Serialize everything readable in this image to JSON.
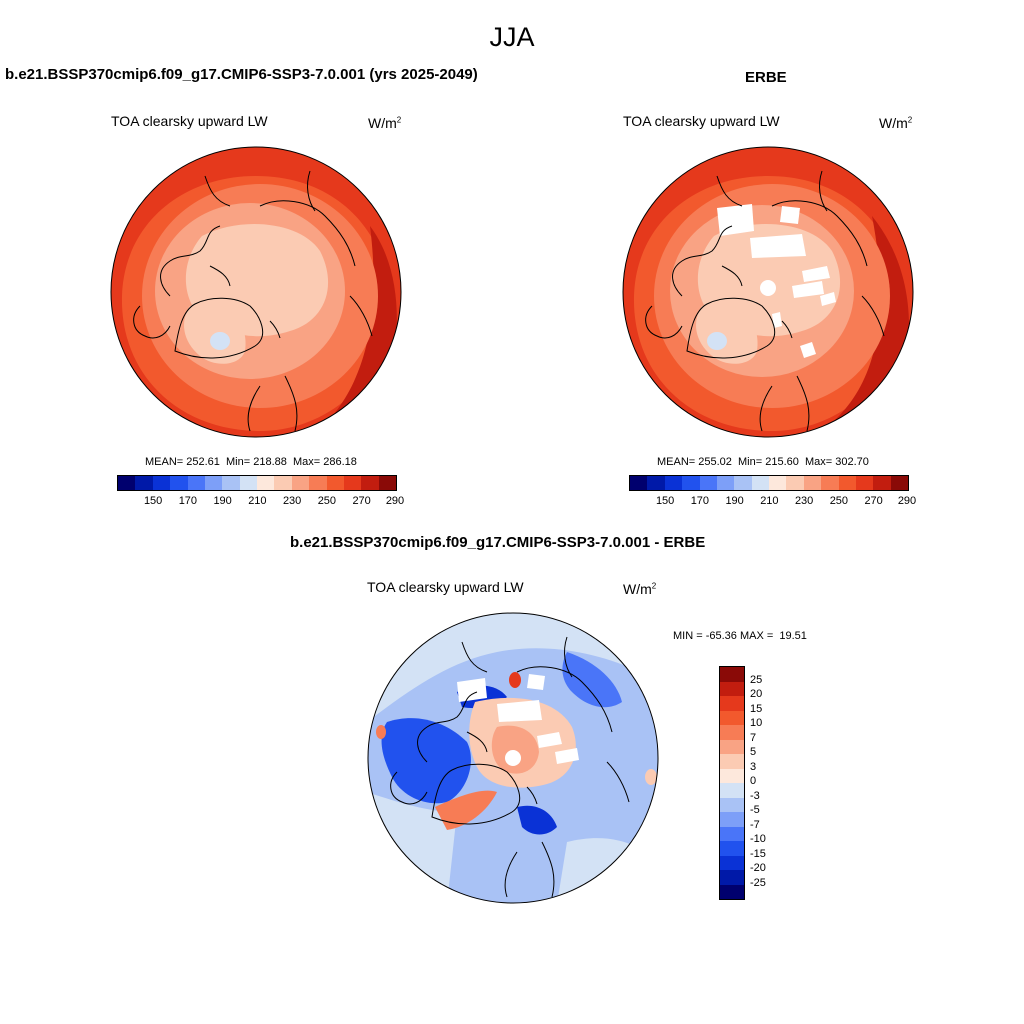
{
  "page": {
    "season": "JJA"
  },
  "panels": {
    "model": {
      "title": "b.e21.BSSP370cmip6.f09_g17.CMIP6-SSP3-7.0.001 (yrs 2025-2049)",
      "variable": "TOA clearsky upward LW",
      "units": "W/m",
      "units_exp": "2",
      "stats": "MEAN= 252.61  Min= 218.88  Max= 286.18"
    },
    "obs": {
      "title": "ERBE",
      "variable": "TOA clearsky upward LW",
      "units": "W/m",
      "units_exp": "2",
      "stats": "MEAN= 255.02  Min= 215.60  Max= 302.70"
    },
    "diff": {
      "title": "b.e21.BSSP370cmip6.f09_g17.CMIP6-SSP3-7.0.001 - ERBE",
      "variable": "TOA clearsky upward LW",
      "units": "W/m",
      "units_exp": "2",
      "stats": "MIN = -65.36 MAX =  19.51"
    }
  },
  "colorbars": {
    "abs_ticks": [
      "150",
      "170",
      "190",
      "210",
      "230",
      "250",
      "270",
      "290"
    ],
    "abs_colors": [
      "#00006e",
      "#0019a8",
      "#0a32d6",
      "#2152ee",
      "#4a75f8",
      "#7d9ff8",
      "#a9c2f5",
      "#d3e2f5",
      "#fde8dc",
      "#fbcbb3",
      "#f9a384",
      "#f77c55",
      "#f2592d",
      "#e5391c",
      "#c21d0f",
      "#8a0a07"
    ],
    "diff_ticks": [
      "25",
      "20",
      "15",
      "10",
      "7",
      "5",
      "3",
      "0",
      "-3",
      "-5",
      "-7",
      "-10",
      "-15",
      "-20",
      "-25"
    ],
    "diff_colors": [
      "#8a0a07",
      "#c21d0f",
      "#e5391c",
      "#f2592d",
      "#f77c55",
      "#f9a384",
      "#fbcbb3",
      "#fde8dc",
      "#d3e2f5",
      "#a9c2f5",
      "#7d9ff8",
      "#4a75f8",
      "#2152ee",
      "#0a32d6",
      "#0019a8",
      "#00006e"
    ]
  }
}
